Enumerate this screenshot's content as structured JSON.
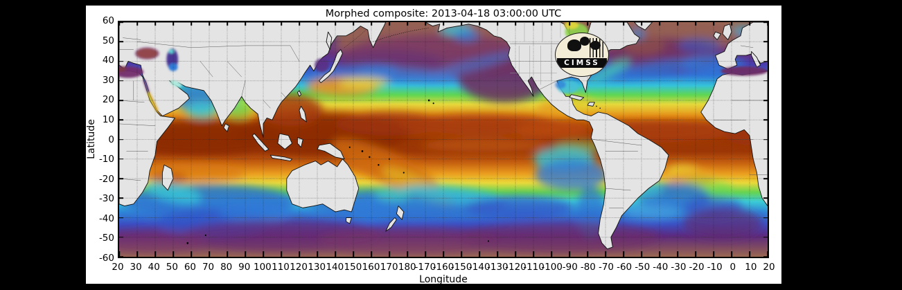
{
  "window": {
    "background_color": "#000000"
  },
  "figure": {
    "background_color": "#ffffff"
  },
  "title": "Morphed composite: 2013-04-18 03:00:00 UTC",
  "axes": {
    "xlabel": "Longitude",
    "ylabel": "Latitude",
    "xtick_labels": [
      "20",
      "30",
      "40",
      "50",
      "60",
      "70",
      "80",
      "90",
      "100",
      "110",
      "120",
      "130",
      "140",
      "150",
      "160",
      "170",
      "180",
      "-170",
      "-160",
      "-150",
      "-140",
      "-130",
      "-120",
      "-110",
      "-100",
      "-90",
      "-80",
      "-70",
      "-60",
      "-50",
      "-40",
      "-30",
      "-20",
      "-10",
      "0",
      "10",
      "20"
    ],
    "ytick_labels": [
      "60",
      "50",
      "40",
      "30",
      "20",
      "10",
      "0",
      "-10",
      "-20",
      "-30",
      "-40",
      "-50",
      "-60"
    ],
    "grid": {
      "style": "dotted",
      "step_degrees": 10,
      "color": "#1a1a1a"
    }
  },
  "logo": {
    "text": "CIMSS"
  },
  "map": {
    "land_color": "#e4e4e4",
    "coastline_color": "#111111",
    "colormap_low_to_high": [
      "#9a6752",
      "#6a2f78",
      "#3a50c4",
      "#2f7ad8",
      "#38cdd8",
      "#64d84f",
      "#ead93a",
      "#e8961c",
      "#c05a0c",
      "#8f2d06"
    ]
  },
  "chart_data": {
    "type": "heatmap",
    "title": "Morphed composite: 2013-04-18 03:00:00 UTC",
    "xlabel": "Longitude",
    "ylabel": "Latitude",
    "x_range_deg": [
      20,
      380
    ],
    "y_range_deg": [
      -60,
      60
    ],
    "grid": "dotted every 10 degrees",
    "description": "Global morphed satellite composite of total precipitable water over the oceans: highest values (dark red-brown and orange) along the equatorial ITCZ and warm pools, grading through yellow, green, cyan and blue in the subtropics to purple and tan-brown at mid/high latitudes; land masses are gray with black coastlines; CIMSS logo over the Great Lakes region."
  }
}
